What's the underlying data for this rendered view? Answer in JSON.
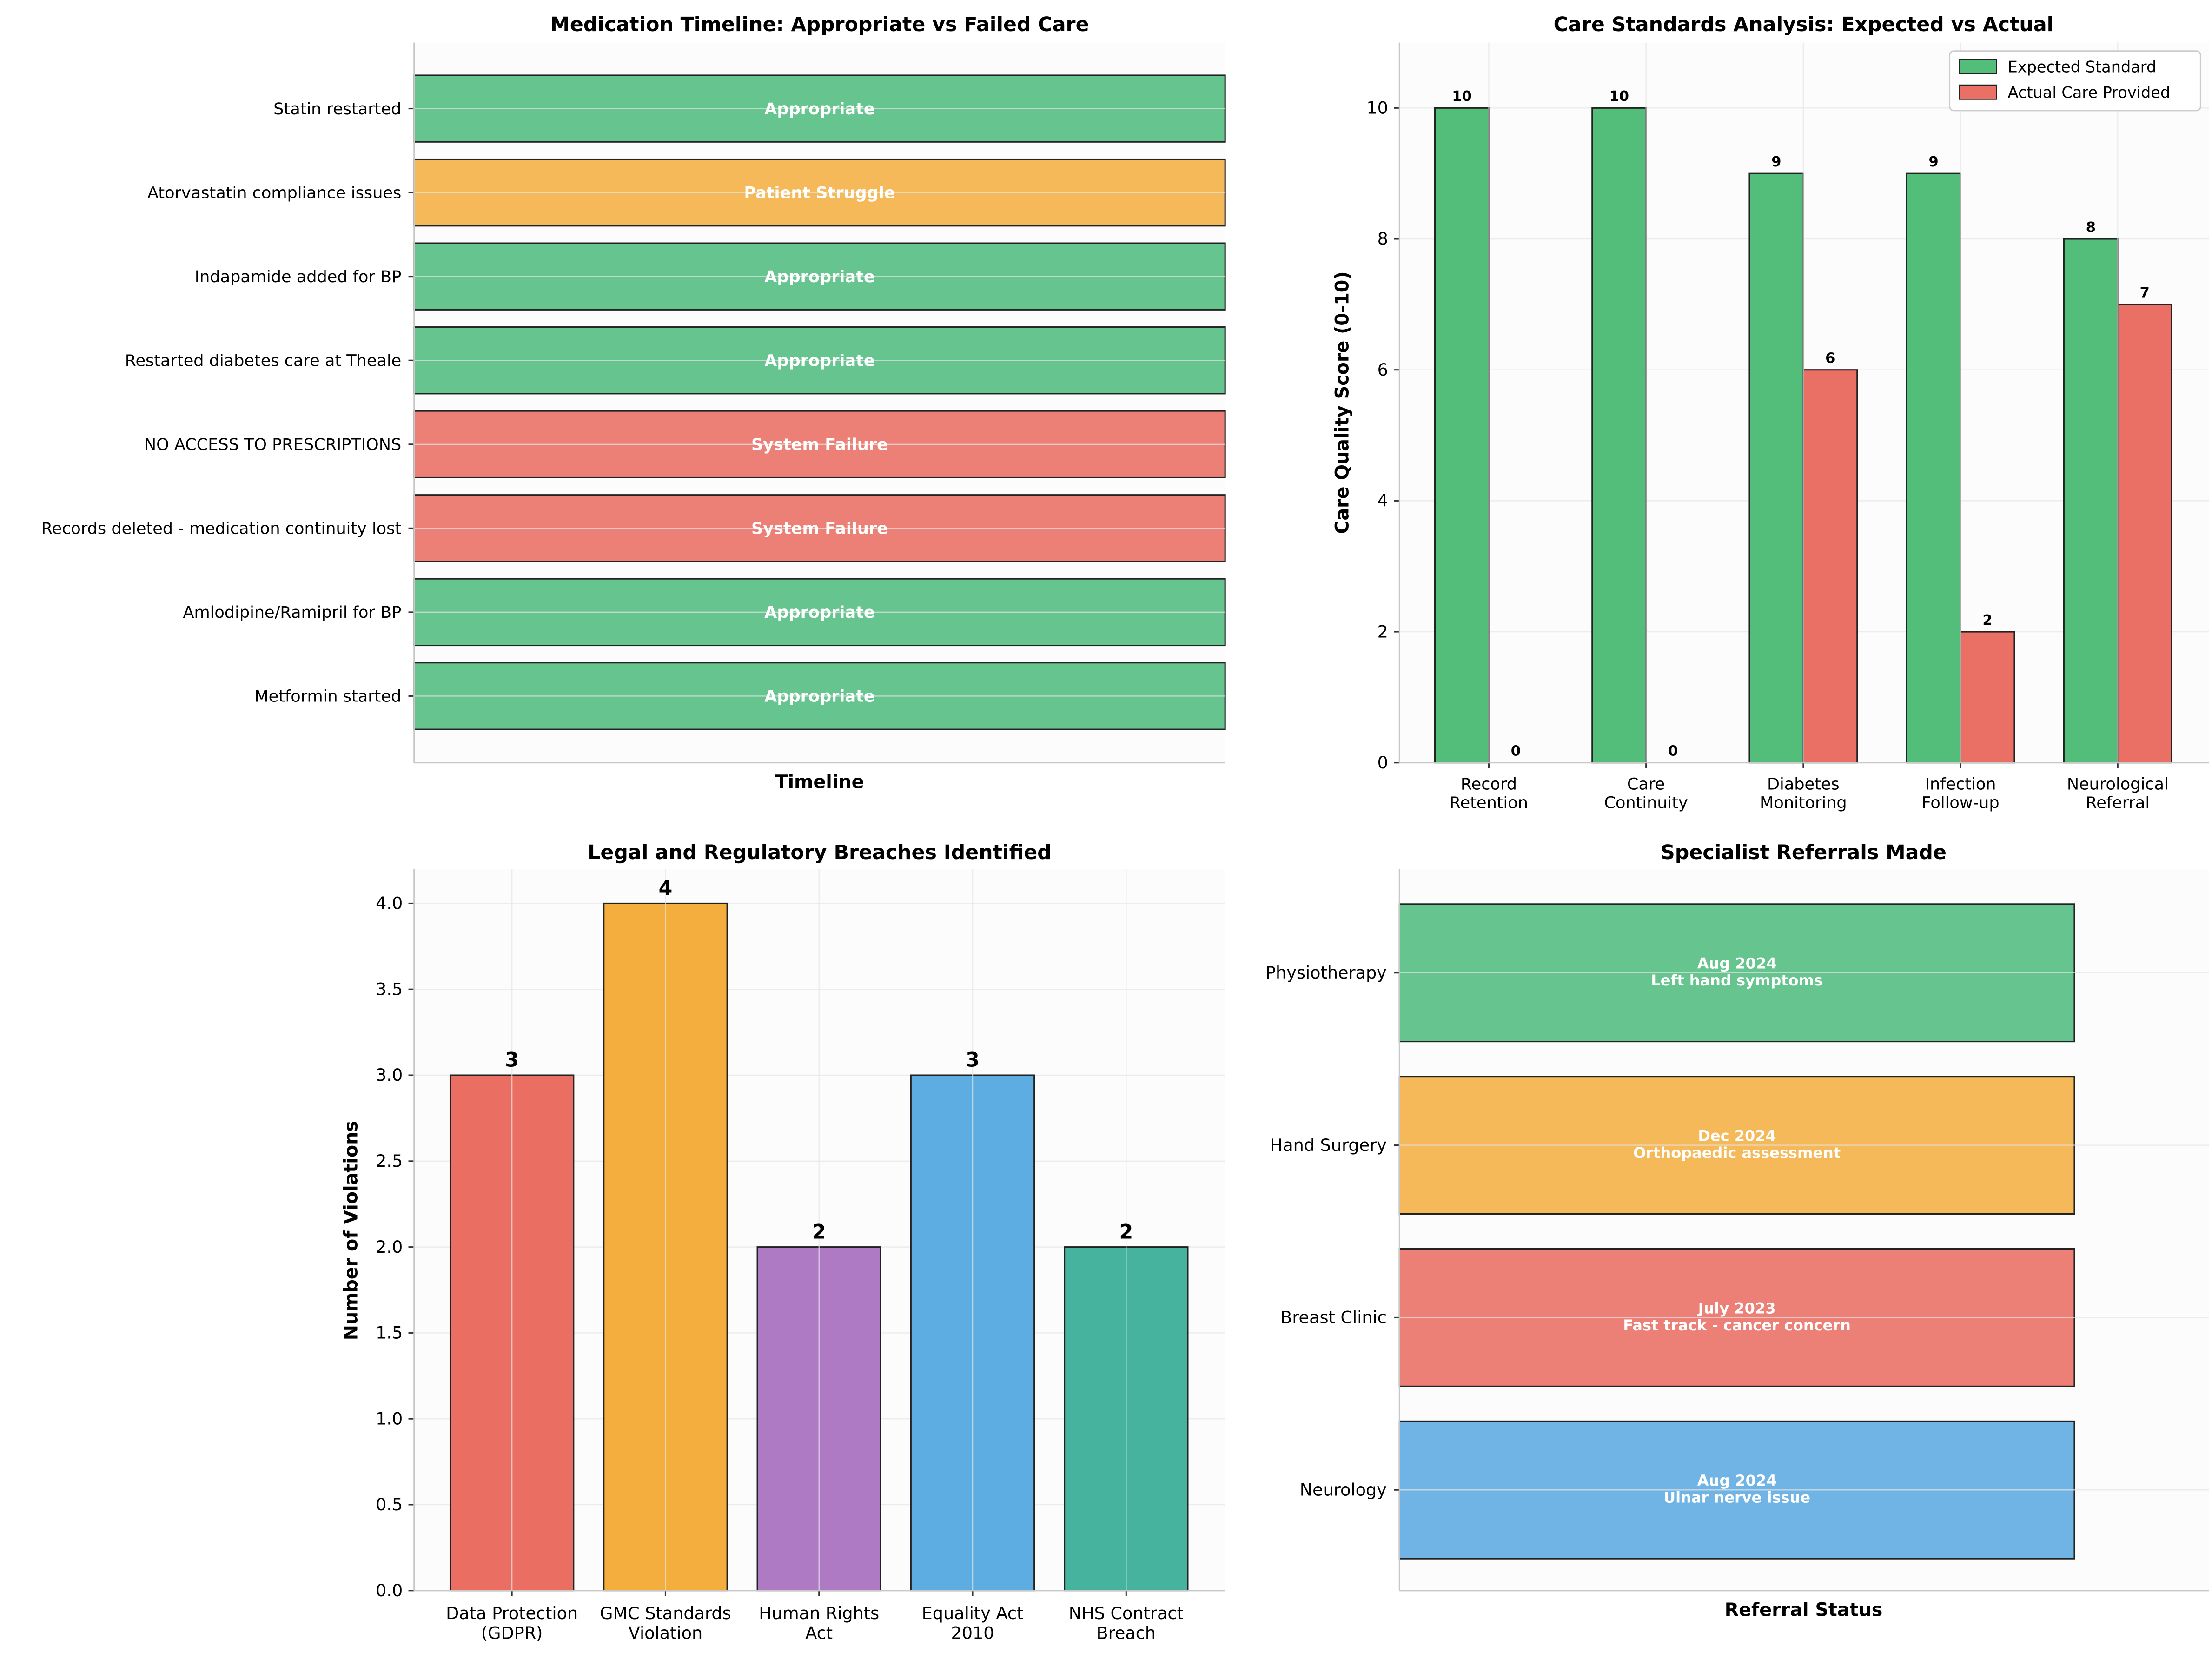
{
  "chart_data": [
    {
      "type": "bar",
      "orientation": "horizontal",
      "title": "Medication Timeline: Appropriate vs Failed Care",
      "xlabel": "Timeline",
      "ylabel": "",
      "categories": [
        "Metformin started",
        "Amlodipine/Ramipril for BP",
        "Records deleted - medication continuity lost",
        "NO ACCESS TO PRESCRIPTIONS",
        "Restarted diabetes care at Theale",
        "Indapamide added for BP",
        "Atorvastatin compliance issues",
        "Statin restarted"
      ],
      "values": [
        1,
        1,
        1,
        1,
        1,
        1,
        1,
        1
      ],
      "bar_labels": [
        "Appropriate",
        "Appropriate",
        "System Failure",
        "System Failure",
        "Appropriate",
        "Appropriate",
        "Patient Struggle",
        "Appropriate"
      ],
      "colors": {
        "Appropriate": "#66c48e",
        "System Failure": "#ed8076",
        "Patient Struggle": "#f5b959"
      },
      "grid": true
    },
    {
      "type": "bar",
      "title": "Care Standards Analysis: Expected vs Actual",
      "xlabel": "",
      "ylabel": "Care Quality Score (0-10)",
      "categories": [
        "Record\nRetention",
        "Care\nContinuity",
        "Diabetes\nMonitoring",
        "Infection\nFollow-up",
        "Neurological\nReferral"
      ],
      "series": [
        {
          "name": "Expected Standard",
          "values": [
            10,
            10,
            9,
            9,
            8
          ],
          "color": "#52be7a"
        },
        {
          "name": "Actual Care Provided",
          "values": [
            0,
            0,
            6,
            2,
            7
          ],
          "color": "#ea6f64"
        }
      ],
      "ylim": [
        0,
        11
      ],
      "yticks": [
        0,
        2,
        4,
        6,
        8,
        10
      ],
      "legend": "top-right",
      "grid": true
    },
    {
      "type": "bar",
      "title": "Legal and Regulatory Breaches Identified",
      "xlabel": "",
      "ylabel": "Number of Violations",
      "categories": [
        "Data Protection\n(GDPR)",
        "GMC Standards\nViolation",
        "Human Rights\nAct",
        "Equality Act\n2010",
        "NHS Contract\nBreach"
      ],
      "values": [
        3,
        4,
        2,
        3,
        2
      ],
      "colors": [
        "#ea6e62",
        "#f4ae3d",
        "#af7ac4",
        "#5dade2",
        "#45b39d"
      ],
      "ylim": [
        0,
        4.2
      ],
      "yticks": [
        "0.0",
        "0.5",
        "1.0",
        "1.5",
        "2.0",
        "2.5",
        "3.0",
        "3.5",
        "4.0"
      ],
      "grid": true
    },
    {
      "type": "bar",
      "orientation": "horizontal",
      "title": "Specialist Referrals Made",
      "xlabel": "Referral Status",
      "ylabel": "",
      "categories": [
        "Neurology",
        "Breast Clinic",
        "Hand Surgery",
        "Physiotherapy"
      ],
      "values": [
        1,
        1,
        1,
        1
      ],
      "bar_labels": [
        [
          "Aug 2024",
          "Ulnar nerve issue"
        ],
        [
          "July 2023",
          "Fast track - cancer concern"
        ],
        [
          "Dec 2024",
          "Orthopaedic assessment"
        ],
        [
          "Aug 2024",
          "Left hand symptoms"
        ]
      ],
      "colors": [
        "#70b4e5",
        "#ed8076",
        "#f5b959",
        "#66c48e"
      ],
      "grid": true
    }
  ]
}
